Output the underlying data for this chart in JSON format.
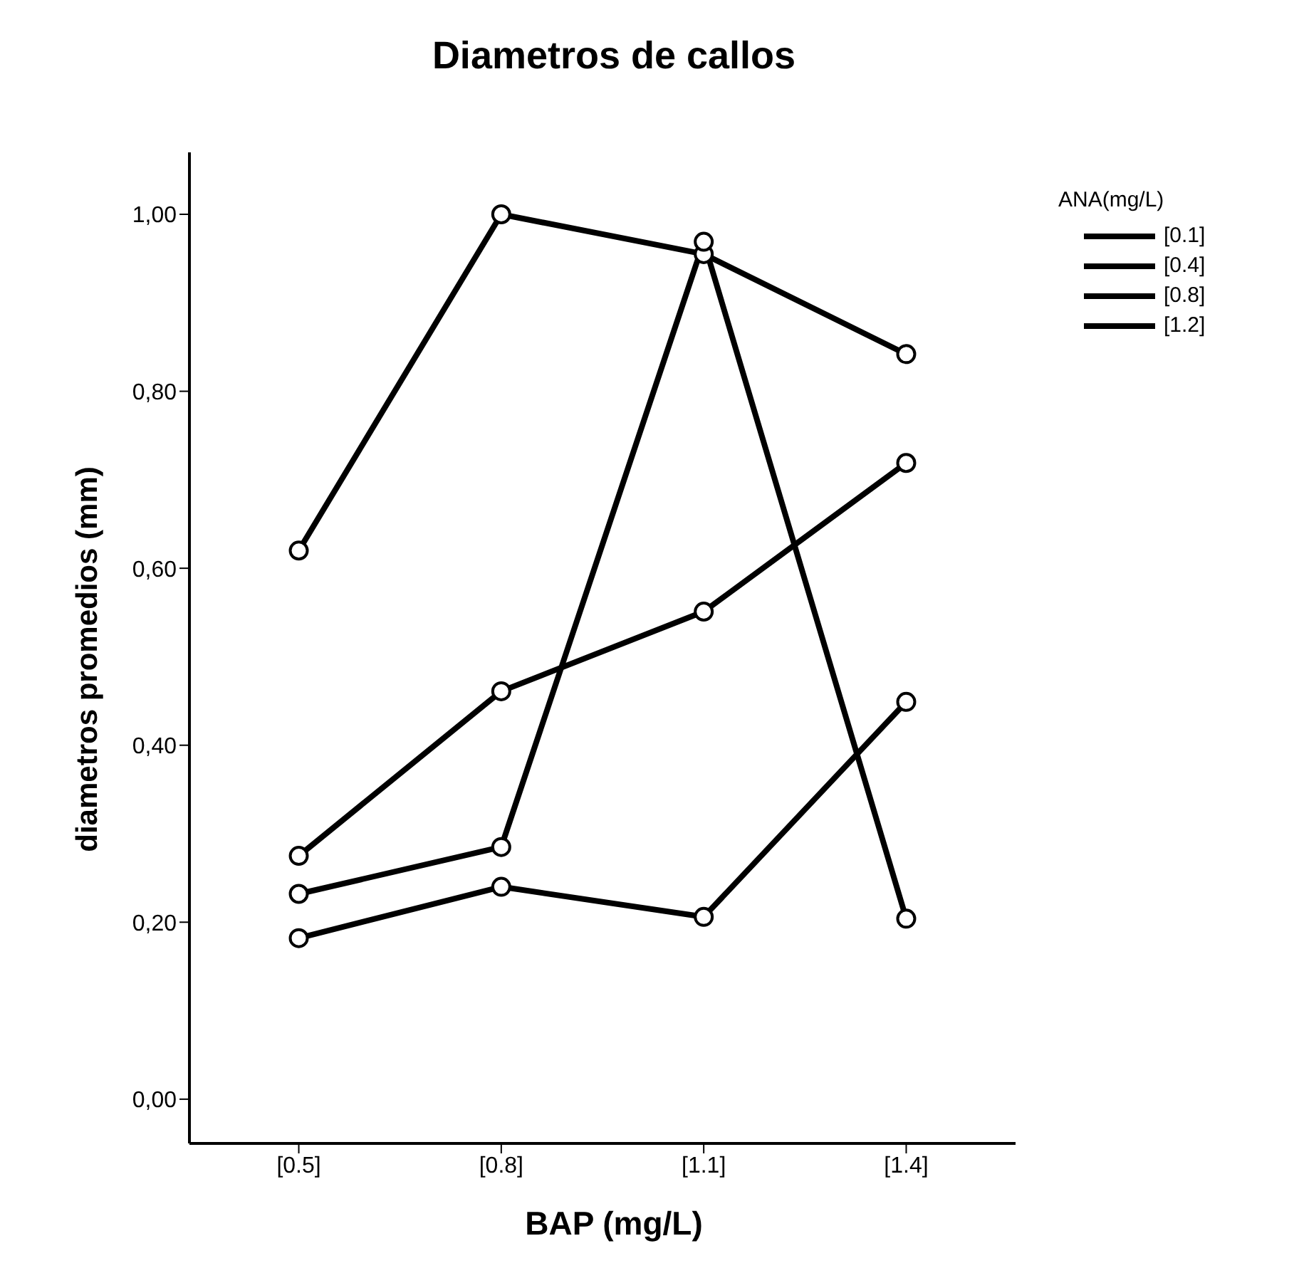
{
  "chart_data": {
    "type": "line",
    "title": "Diametros de callos",
    "xlabel": "BAP (mg/L)",
    "ylabel": "diametros promedios (mm)",
    "legend_title": "ANA(mg/L)",
    "categories": [
      "[0.5]",
      "[0.8]",
      "[1.1]",
      "[1.4]"
    ],
    "series": [
      {
        "name": "[0.1]",
        "color": "#000000",
        "values": [
          0.62,
          1.0,
          0.955,
          0.842
        ]
      },
      {
        "name": "[0.4]",
        "color": "#000000",
        "values": [
          0.275,
          0.461,
          0.551,
          0.719
        ]
      },
      {
        "name": "[0.8]",
        "color": "#000000",
        "values": [
          0.232,
          0.285,
          0.969,
          0.204
        ]
      },
      {
        "name": "[1.2]",
        "color": "#000000",
        "values": [
          0.182,
          0.24,
          0.206,
          0.449
        ]
      }
    ],
    "ylim": [
      -0.05,
      1.07
    ],
    "yticks": [
      {
        "value": 0,
        "label": "0,00"
      },
      {
        "value": 0.2,
        "label": "0,20"
      },
      {
        "value": 0.4,
        "label": "0,40"
      },
      {
        "value": 0.6,
        "label": "0,60"
      },
      {
        "value": 0.8,
        "label": "0,80"
      },
      {
        "value": 1.0,
        "label": "1,00"
      }
    ],
    "grid": false,
    "legend": "top right",
    "marker": "circle",
    "line_style": "solid"
  }
}
